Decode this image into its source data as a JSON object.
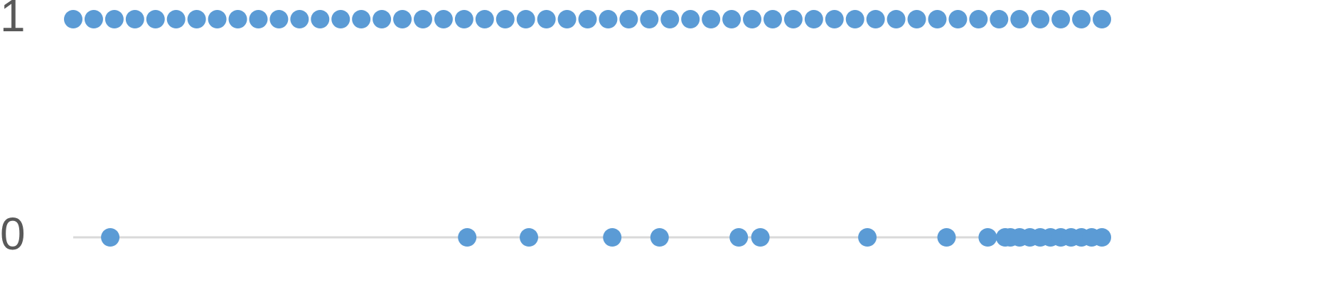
{
  "chart_data": {
    "type": "scatter",
    "title": "",
    "xlabel": "",
    "ylabel": "",
    "y_ticks": [
      "0",
      "1"
    ],
    "ylim": [
      0,
      1
    ],
    "xlim": [
      0,
      100
    ],
    "grid": false,
    "legend": "none",
    "series": [
      {
        "color": "#5b9bd5",
        "points": [
          {
            "x": 0,
            "y": 1
          },
          {
            "x": 2,
            "y": 1
          },
          {
            "x": 4,
            "y": 1
          },
          {
            "x": 6,
            "y": 1
          },
          {
            "x": 8,
            "y": 1
          },
          {
            "x": 10,
            "y": 1
          },
          {
            "x": 12,
            "y": 1
          },
          {
            "x": 14,
            "y": 1
          },
          {
            "x": 16,
            "y": 1
          },
          {
            "x": 18,
            "y": 1
          },
          {
            "x": 20,
            "y": 1
          },
          {
            "x": 22,
            "y": 1
          },
          {
            "x": 24,
            "y": 1
          },
          {
            "x": 26,
            "y": 1
          },
          {
            "x": 28,
            "y": 1
          },
          {
            "x": 30,
            "y": 1
          },
          {
            "x": 32,
            "y": 1
          },
          {
            "x": 34,
            "y": 1
          },
          {
            "x": 36,
            "y": 1
          },
          {
            "x": 38,
            "y": 1
          },
          {
            "x": 40,
            "y": 1
          },
          {
            "x": 42,
            "y": 1
          },
          {
            "x": 44,
            "y": 1
          },
          {
            "x": 46,
            "y": 1
          },
          {
            "x": 48,
            "y": 1
          },
          {
            "x": 50,
            "y": 1
          },
          {
            "x": 52,
            "y": 1
          },
          {
            "x": 54,
            "y": 1
          },
          {
            "x": 56,
            "y": 1
          },
          {
            "x": 58,
            "y": 1
          },
          {
            "x": 60,
            "y": 1
          },
          {
            "x": 62,
            "y": 1
          },
          {
            "x": 64,
            "y": 1
          },
          {
            "x": 66,
            "y": 1
          },
          {
            "x": 68,
            "y": 1
          },
          {
            "x": 70,
            "y": 1
          },
          {
            "x": 72,
            "y": 1
          },
          {
            "x": 74,
            "y": 1
          },
          {
            "x": 76,
            "y": 1
          },
          {
            "x": 78,
            "y": 1
          },
          {
            "x": 80,
            "y": 1
          },
          {
            "x": 82,
            "y": 1
          },
          {
            "x": 84,
            "y": 1
          },
          {
            "x": 86,
            "y": 1
          },
          {
            "x": 88,
            "y": 1
          },
          {
            "x": 90,
            "y": 1
          },
          {
            "x": 92,
            "y": 1
          },
          {
            "x": 94,
            "y": 1
          },
          {
            "x": 96,
            "y": 1
          },
          {
            "x": 98,
            "y": 1
          },
          {
            "x": 100,
            "y": 1
          },
          {
            "x": 3.6,
            "y": 0
          },
          {
            "x": 38.3,
            "y": 0
          },
          {
            "x": 44.3,
            "y": 0
          },
          {
            "x": 52.4,
            "y": 0
          },
          {
            "x": 57.0,
            "y": 0
          },
          {
            "x": 64.7,
            "y": 0
          },
          {
            "x": 66.8,
            "y": 0
          },
          {
            "x": 77.2,
            "y": 0
          },
          {
            "x": 84.9,
            "y": 0
          },
          {
            "x": 88.9,
            "y": 0
          },
          {
            "x": 90.6,
            "y": 0
          },
          {
            "x": 91.1,
            "y": 0
          },
          {
            "x": 92.0,
            "y": 0
          },
          {
            "x": 93.0,
            "y": 0
          },
          {
            "x": 94.0,
            "y": 0
          },
          {
            "x": 95.0,
            "y": 0
          },
          {
            "x": 96.0,
            "y": 0
          },
          {
            "x": 97.0,
            "y": 0
          },
          {
            "x": 98.0,
            "y": 0
          },
          {
            "x": 99.0,
            "y": 0
          },
          {
            "x": 100,
            "y": 0
          }
        ]
      }
    ]
  }
}
